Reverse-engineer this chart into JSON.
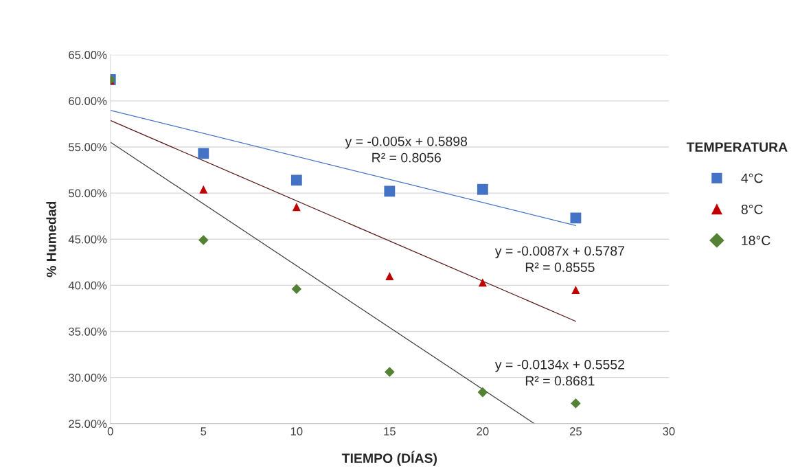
{
  "chart_data": {
    "type": "scatter",
    "xlabel": "TIEMPO (DÍAS)",
    "ylabel": "% Humedad",
    "legend_title": "TEMPERATURA",
    "x": [
      0,
      5,
      10,
      15,
      20,
      25
    ],
    "series": [
      {
        "name": "4°C",
        "color": "#4472c4",
        "marker": "square",
        "values": [
          0.623,
          0.543,
          0.514,
          0.502,
          0.504,
          0.473
        ]
      },
      {
        "name": "8°C",
        "color": "#c00000",
        "marker": "triangle",
        "values": [
          0.622,
          0.504,
          0.485,
          0.41,
          0.403,
          0.395
        ]
      },
      {
        "name": "18°C",
        "color": "#548235",
        "marker": "diamond",
        "values": [
          0.623,
          0.449,
          0.396,
          0.306,
          0.284,
          0.272
        ]
      },
      {
        "type": "line",
        "color": "#4472c4",
        "x": [
          0,
          25
        ],
        "values": [
          0.5898,
          0.4648
        ]
      },
      {
        "type": "line",
        "color": "#5a1a1a",
        "x": [
          0,
          25
        ],
        "values": [
          0.5787,
          0.361
        ]
      },
      {
        "type": "line",
        "color": "#404040",
        "x": [
          0,
          22.78
        ],
        "values": [
          0.5552,
          0.25
        ]
      }
    ],
    "annotations": [
      "y = -0.005x + 0.5898\nR² = 0.8056",
      "y = -0.0087x + 0.5787\nR² = 0.8555",
      "y = -0.0134x + 0.5552\nR² = 0.8681"
    ],
    "xlim": [
      0,
      30
    ],
    "xticks": [
      0,
      5,
      10,
      15,
      20,
      25,
      30
    ],
    "ylim": [
      0.25,
      0.65
    ],
    "yticks": [
      {
        "value": 0.25,
        "label": "25.00%"
      },
      {
        "value": 0.3,
        "label": "30.00%"
      },
      {
        "value": 0.35,
        "label": "35.00%"
      },
      {
        "value": 0.4,
        "label": "40.00%"
      },
      {
        "value": 0.45,
        "label": "45.00%"
      },
      {
        "value": 0.5,
        "label": "50.00%"
      },
      {
        "value": 0.55,
        "label": "55.00%"
      },
      {
        "value": 0.6,
        "label": "60.00%"
      },
      {
        "value": 0.65,
        "label": "65.00%"
      }
    ],
    "grid": "y",
    "legend": "right"
  }
}
